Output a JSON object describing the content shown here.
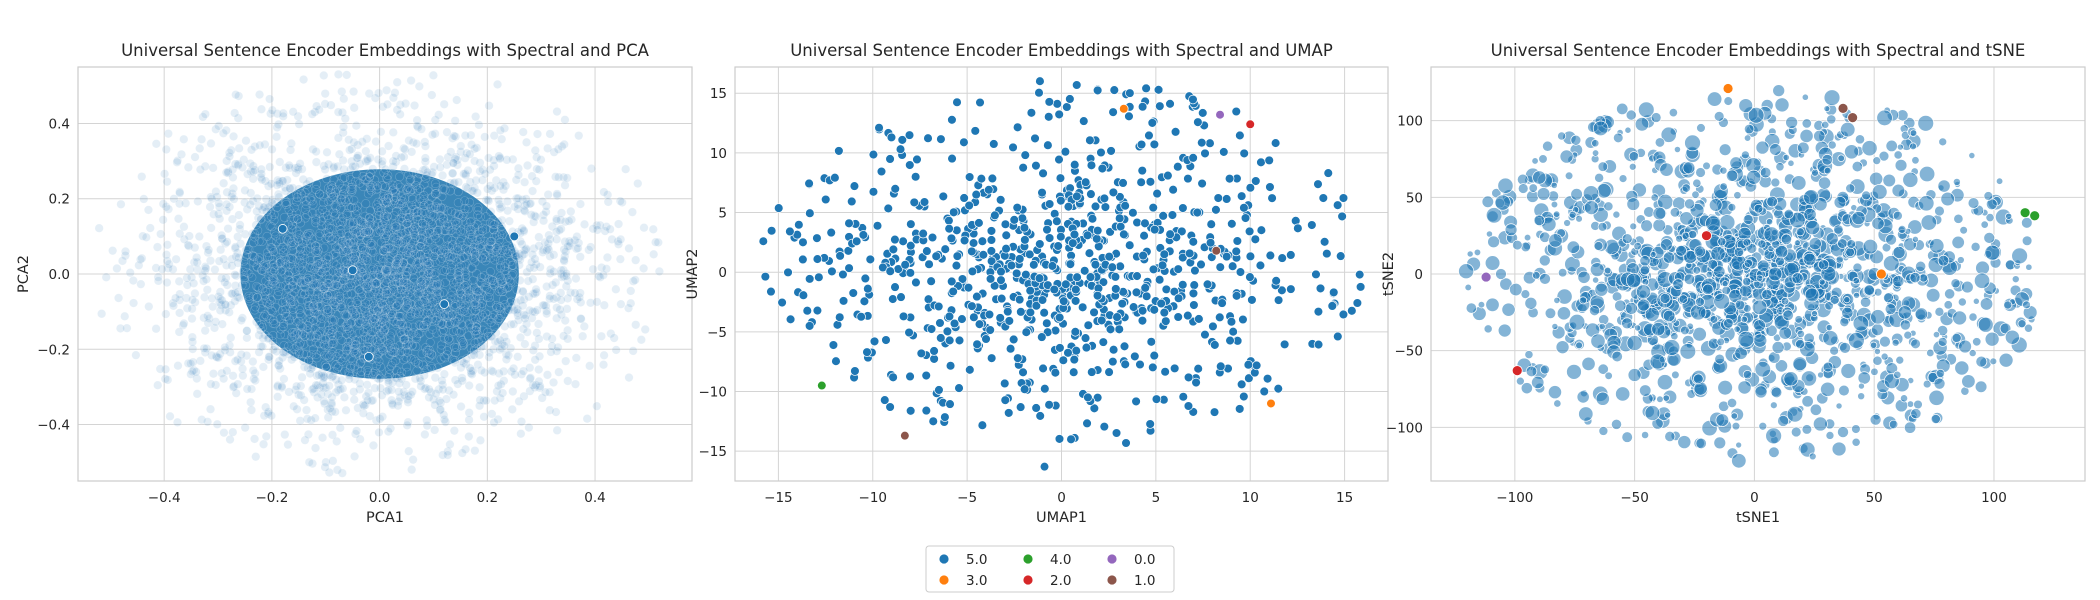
{
  "chart_data": [
    {
      "type": "scatter",
      "title": "Universal Sentence Encoder Embeddings with Spectral and PCA",
      "xlabel": "PCA1",
      "ylabel": "PCA2",
      "xlim": [
        -0.56,
        0.58
      ],
      "ylim": [
        -0.55,
        0.55
      ],
      "xticks": [
        -0.4,
        -0.2,
        0.0,
        0.2,
        0.4
      ],
      "xtick_labels": [
        "−0.4",
        "−0.2",
        "0.0",
        "0.2",
        "0.4"
      ],
      "yticks": [
        -0.4,
        -0.2,
        0.0,
        0.2,
        0.4
      ],
      "ytick_labels": [
        "−0.4",
        "−0.2",
        "0.0",
        "0.2",
        "0.4"
      ],
      "grid": true,
      "cloud": {
        "cx": 0.0,
        "cy": 0.0,
        "rx": 0.47,
        "ry": 0.48,
        "alpha": 0.12
      },
      "points": [
        {
          "x": -0.05,
          "y": 0.01,
          "label": "5.0"
        },
        {
          "x": 0.12,
          "y": -0.08,
          "label": "5.0"
        },
        {
          "x": -0.18,
          "y": 0.12,
          "label": "5.0"
        },
        {
          "x": 0.25,
          "y": 0.1,
          "label": "5.0"
        },
        {
          "x": -0.02,
          "y": -0.22,
          "label": "5.0"
        }
      ]
    },
    {
      "type": "scatter",
      "title": "Universal Sentence Encoder Embeddings with Spectral and UMAP",
      "xlabel": "UMAP1",
      "ylabel": "UMAP2",
      "xlim": [
        -17.3,
        17.3
      ],
      "ylim": [
        -17.5,
        17.2
      ],
      "xticks": [
        -15,
        -10,
        -5,
        0,
        5,
        10,
        15
      ],
      "xtick_labels": [
        "−15",
        "−10",
        "−5",
        "0",
        "5",
        "10",
        "15"
      ],
      "yticks": [
        -15,
        -10,
        -5,
        0,
        5,
        10,
        15
      ],
      "ytick_labels": [
        "−15",
        "−10",
        "−5",
        "0",
        "5",
        "10",
        "15"
      ],
      "grid": true,
      "cluster": {
        "cx": 0.2,
        "cy": 0.8,
        "rx": 16,
        "ry": 15.5,
        "alpha": 1
      },
      "points": [
        {
          "x": 3.3,
          "y": 13.7,
          "label": "3.0"
        },
        {
          "x": 8.4,
          "y": 13.2,
          "label": "0.0"
        },
        {
          "x": 10.0,
          "y": 12.4,
          "label": "2.0"
        },
        {
          "x": 8.2,
          "y": 1.8,
          "label": "1.0"
        },
        {
          "x": -12.7,
          "y": -9.5,
          "label": "4.0"
        },
        {
          "x": -8.3,
          "y": -13.7,
          "label": "1.0"
        },
        {
          "x": 11.1,
          "y": -11.0,
          "label": "3.0"
        },
        {
          "x": -0.9,
          "y": -16.3,
          "label": "5.0"
        },
        {
          "x": -15.8,
          "y": 2.6,
          "label": "5.0"
        },
        {
          "x": 15.8,
          "y": -0.2,
          "label": "5.0"
        }
      ]
    },
    {
      "type": "scatter",
      "title": "Universal Sentence Encoder Embeddings with Spectral and tSNE",
      "xlabel": "tSNE1",
      "ylabel": "tSNE2",
      "xlim": [
        -135,
        138
      ],
      "ylim": [
        -135,
        135
      ],
      "xticks": [
        -100,
        -50,
        0,
        50,
        100
      ],
      "xtick_labels": [
        "−100",
        "−50",
        "0",
        "50",
        "100"
      ],
      "yticks": [
        -100,
        -50,
        0,
        50,
        100
      ],
      "ytick_labels": [
        "−100",
        "−50",
        "0",
        "50",
        "100"
      ],
      "grid": true,
      "cluster": {
        "cx": 0,
        "cy": 0,
        "rx": 121,
        "ry": 122,
        "alpha": 0.75
      },
      "points": [
        {
          "x": -11,
          "y": 121,
          "label": "3.0"
        },
        {
          "x": 41,
          "y": 102,
          "label": "1.0"
        },
        {
          "x": 37,
          "y": 108,
          "label": "1.0"
        },
        {
          "x": 113,
          "y": 40,
          "label": "4.0"
        },
        {
          "x": 117,
          "y": 38,
          "label": "4.0"
        },
        {
          "x": -112,
          "y": -2,
          "label": "0.0"
        },
        {
          "x": -99,
          "y": -63,
          "label": "2.0"
        },
        {
          "x": 53,
          "y": 0,
          "label": "3.0"
        },
        {
          "x": -20,
          "y": 25,
          "label": "2.0"
        }
      ]
    }
  ],
  "legend": {
    "placement": "lower-center",
    "entries": [
      {
        "label": "5.0",
        "color": "#1f77b4"
      },
      {
        "label": "3.0",
        "color": "#ff7f0e"
      },
      {
        "label": "4.0",
        "color": "#2ca02c"
      },
      {
        "label": "2.0",
        "color": "#d62728"
      },
      {
        "label": "0.0",
        "color": "#9467bd"
      },
      {
        "label": "1.0",
        "color": "#8c564b"
      }
    ]
  }
}
